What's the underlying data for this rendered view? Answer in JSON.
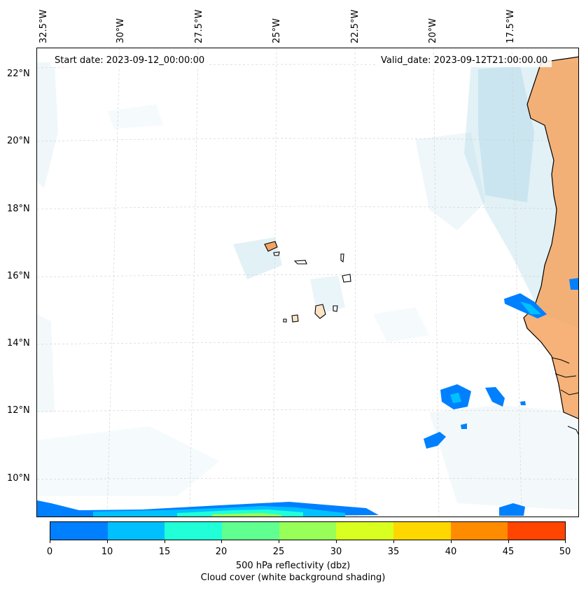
{
  "map": {
    "start_date": "Start date: 2023-09-12_00:00:00",
    "valid_date": "Valid_date: 2023-09-12T21:00:00.00",
    "lon_labels": [
      "32.5°W",
      "30°W",
      "27.5°W",
      "25°W",
      "22.5°W",
      "20°W",
      "17.5°W"
    ],
    "lat_labels": [
      "22°N",
      "20°N",
      "18°N",
      "16°N",
      "14°N",
      "12°N",
      "10°N"
    ],
    "land_color": "#f4a460",
    "coast_color": "#000000",
    "cloud_color": "#add8e6",
    "grid": true
  },
  "colorbar": {
    "ticks": [
      "0",
      "10",
      "15",
      "20",
      "25",
      "30",
      "35",
      "40",
      "45",
      "50"
    ],
    "colors": [
      "#0080ff",
      "#00c0ff",
      "#20ffd8",
      "#60ff90",
      "#98ff58",
      "#d8ff20",
      "#ffd700",
      "#ff8c00",
      "#ff4500"
    ],
    "label_line1": "500 hPa reflectivity (dbz)",
    "label_line2": "Cloud cover (white background shading)"
  }
}
